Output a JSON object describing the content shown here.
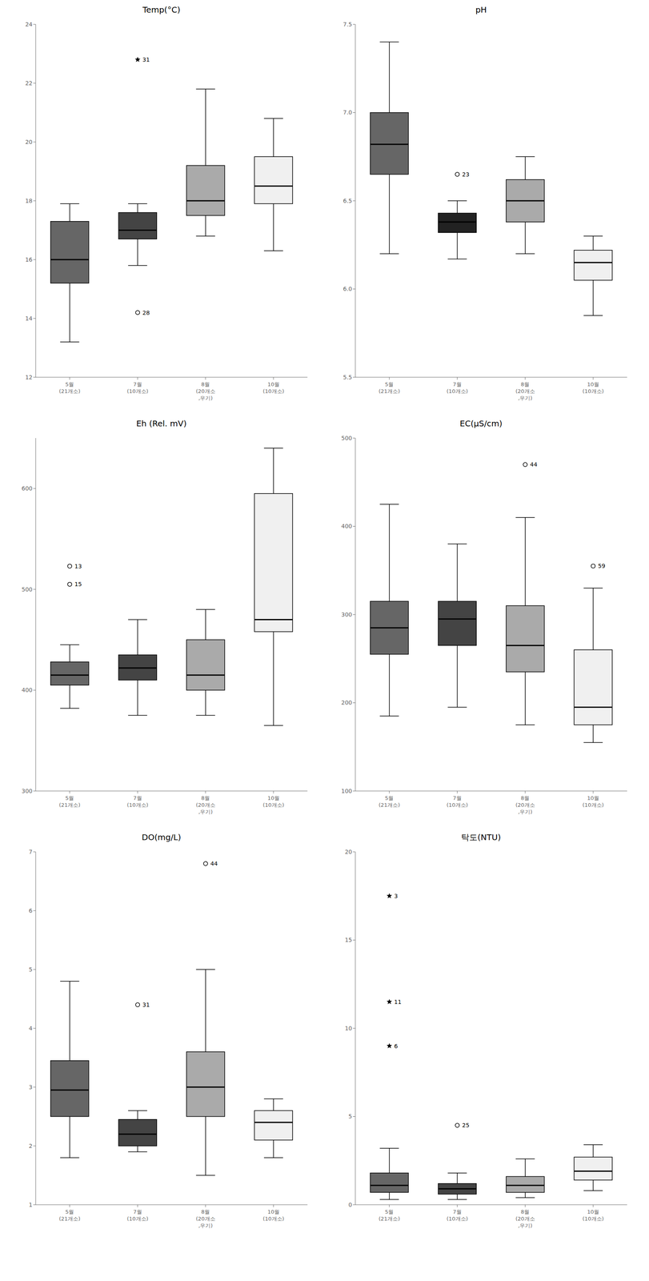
{
  "chart_data": [
    {
      "type": "box",
      "title": "Temp(°C)",
      "categories": [
        "5월\n(21개소)",
        "7월\n(10개소)",
        "8월\n(20개소\n,우기)",
        "10월\n(10개소)"
      ],
      "ylim": [
        12,
        24
      ],
      "yticks": [
        12,
        14,
        16,
        18,
        20,
        22,
        24
      ],
      "grid": false,
      "boxes": [
        {
          "whislo": 13.2,
          "q1": 15.2,
          "med": 16.0,
          "q3": 17.3,
          "whishi": 17.9,
          "color": "#666666"
        },
        {
          "whislo": 15.8,
          "q1": 16.7,
          "med": 17.0,
          "q3": 17.6,
          "whishi": 17.9,
          "color": "#444444"
        },
        {
          "whislo": 16.8,
          "q1": 17.5,
          "med": 18.0,
          "q3": 19.2,
          "whishi": 21.8,
          "color": "#aaaaaa"
        },
        {
          "whislo": 16.3,
          "q1": 17.9,
          "med": 18.5,
          "q3": 19.5,
          "whishi": 20.8,
          "color": "#f0f0f0"
        }
      ],
      "outliers": [
        {
          "x": "7월\n(10개소)",
          "y": 22.8,
          "label": "31",
          "marker": "star"
        },
        {
          "x": "7월\n(10개소)",
          "y": 14.2,
          "label": "28",
          "marker": "circle"
        }
      ]
    },
    {
      "type": "box",
      "title": "pH",
      "categories": [
        "5월\n(21개소)",
        "7월\n(10개소)",
        "8월\n(20개소\n,우기)",
        "10월\n(10개소)"
      ],
      "ylim": [
        5.5,
        7.5
      ],
      "yticks": [
        5.5,
        {
          "value": 6,
          "label": "6.0"
        },
        6.5,
        {
          "value": 7,
          "label": "7.0"
        },
        7.5
      ],
      "grid": false,
      "boxes": [
        {
          "whislo": 6.2,
          "q1": 6.65,
          "med": 6.82,
          "q3": 7.0,
          "whishi": 7.4,
          "color": "#666666"
        },
        {
          "whislo": 6.17,
          "q1": 6.32,
          "med": 6.38,
          "q3": 6.43,
          "whishi": 6.5,
          "color": "#222222"
        },
        {
          "whislo": 6.2,
          "q1": 6.38,
          "med": 6.5,
          "q3": 6.62,
          "whishi": 6.75,
          "color": "#aaaaaa"
        },
        {
          "whislo": 5.85,
          "q1": 6.05,
          "med": 6.15,
          "q3": 6.22,
          "whishi": 6.3,
          "color": "#f0f0f0"
        }
      ],
      "outliers": [
        {
          "x": "7월\n(10개소)",
          "y": 6.65,
          "label": "23",
          "marker": "circle"
        }
      ]
    },
    {
      "type": "box",
      "title": "Eh (Rel. mV)",
      "categories": [
        "5월\n(21개소)",
        "7월\n(10개소)",
        "8월\n(20개소\n,우기)",
        "10월\n(10개소)"
      ],
      "ylim": [
        300,
        650
      ],
      "yticks": [
        300,
        400,
        500,
        600
      ],
      "grid": false,
      "boxes": [
        {
          "whislo": 382,
          "q1": 405,
          "med": 415,
          "q3": 428,
          "whishi": 445,
          "color": "#666666"
        },
        {
          "whislo": 375,
          "q1": 410,
          "med": 422,
          "q3": 435,
          "whishi": 470,
          "color": "#444444"
        },
        {
          "whislo": 375,
          "q1": 400,
          "med": 415,
          "q3": 450,
          "whishi": 480,
          "color": "#aaaaaa"
        },
        {
          "whislo": 365,
          "q1": 458,
          "med": 470,
          "q3": 595,
          "whishi": 640,
          "color": "#f0f0f0"
        }
      ],
      "outliers": [
        {
          "x": "5월\n(21개소)",
          "y": 523,
          "label": "13",
          "marker": "circle"
        },
        {
          "x": "5월\n(21개소)",
          "y": 505,
          "label": "15",
          "marker": "circle"
        }
      ]
    },
    {
      "type": "box",
      "title": "EC(μS/cm)",
      "categories": [
        "5월\n(21개소)",
        "7월\n(10개소)",
        "8월\n(20개소\n,우기)",
        "10월\n(10개소)"
      ],
      "ylim": [
        100,
        500
      ],
      "yticks": [
        100,
        200,
        300,
        400,
        500
      ],
      "grid": false,
      "boxes": [
        {
          "whislo": 185,
          "q1": 255,
          "med": 285,
          "q3": 315,
          "whishi": 425,
          "color": "#666666"
        },
        {
          "whislo": 195,
          "q1": 265,
          "med": 295,
          "q3": 315,
          "whishi": 380,
          "color": "#444444"
        },
        {
          "whislo": 175,
          "q1": 235,
          "med": 265,
          "q3": 310,
          "whishi": 410,
          "color": "#aaaaaa"
        },
        {
          "whislo": 155,
          "q1": 175,
          "med": 195,
          "q3": 260,
          "whishi": 330,
          "color": "#f0f0f0"
        }
      ],
      "outliers": [
        {
          "x": "8월\n(20개소\n,우기)",
          "y": 470,
          "label": "44",
          "marker": "circle"
        },
        {
          "x": "10월\n(10개소)",
          "y": 355,
          "label": "59",
          "marker": "circle"
        }
      ]
    },
    {
      "type": "box",
      "title": "DO(mg/L)",
      "categories": [
        "5월\n(21개소)",
        "7월\n(10개소)",
        "8월\n(20개소\n,우기)",
        "10월\n(10개소)"
      ],
      "ylim": [
        1,
        7
      ],
      "yticks": [
        1,
        2,
        3,
        4,
        5,
        6,
        7
      ],
      "grid": false,
      "boxes": [
        {
          "whislo": 1.8,
          "q1": 2.5,
          "med": 2.95,
          "q3": 3.45,
          "whishi": 4.8,
          "color": "#666666"
        },
        {
          "whislo": 1.9,
          "q1": 2.0,
          "med": 2.2,
          "q3": 2.45,
          "whishi": 2.6,
          "color": "#444444"
        },
        {
          "whislo": 1.5,
          "q1": 2.5,
          "med": 3.0,
          "q3": 3.6,
          "whishi": 5.0,
          "color": "#aaaaaa"
        },
        {
          "whislo": 1.8,
          "q1": 2.1,
          "med": 2.4,
          "q3": 2.6,
          "whishi": 2.8,
          "color": "#f0f0f0"
        }
      ],
      "outliers": [
        {
          "x": "7월\n(10개소)",
          "y": 4.4,
          "label": "31",
          "marker": "circle"
        },
        {
          "x": "8월\n(20개소\n,우기)",
          "y": 6.8,
          "label": "44",
          "marker": "circle"
        }
      ]
    },
    {
      "type": "box",
      "title": "탁도(NTU)",
      "categories": [
        "5월\n(21개소)",
        "7월\n(10개소)",
        "8월\n(20개소\n,우기)",
        "10월\n(10개소)"
      ],
      "ylim": [
        0,
        20
      ],
      "yticks": [
        0,
        5,
        10,
        15,
        20
      ],
      "grid": false,
      "boxes": [
        {
          "whislo": 0.3,
          "q1": 0.7,
          "med": 1.1,
          "q3": 1.8,
          "whishi": 3.2,
          "color": "#666666"
        },
        {
          "whislo": 0.3,
          "q1": 0.6,
          "med": 0.9,
          "q3": 1.2,
          "whishi": 1.8,
          "color": "#444444"
        },
        {
          "whislo": 0.4,
          "q1": 0.7,
          "med": 1.1,
          "q3": 1.6,
          "whishi": 2.6,
          "color": "#aaaaaa"
        },
        {
          "whislo": 0.8,
          "q1": 1.4,
          "med": 1.9,
          "q3": 2.7,
          "whishi": 3.4,
          "color": "#f0f0f0"
        }
      ],
      "outliers": [
        {
          "x": "5월\n(21개소)",
          "y": 17.5,
          "label": "3",
          "marker": "star"
        },
        {
          "x": "5월\n(21개소)",
          "y": 9.0,
          "label": "6",
          "marker": "star"
        },
        {
          "x": "5월\n(21개소)",
          "y": 11.5,
          "label": "11",
          "marker": "star"
        },
        {
          "x": "7월\n(10개소)",
          "y": 4.5,
          "label": "25",
          "marker": "circle"
        }
      ]
    }
  ]
}
